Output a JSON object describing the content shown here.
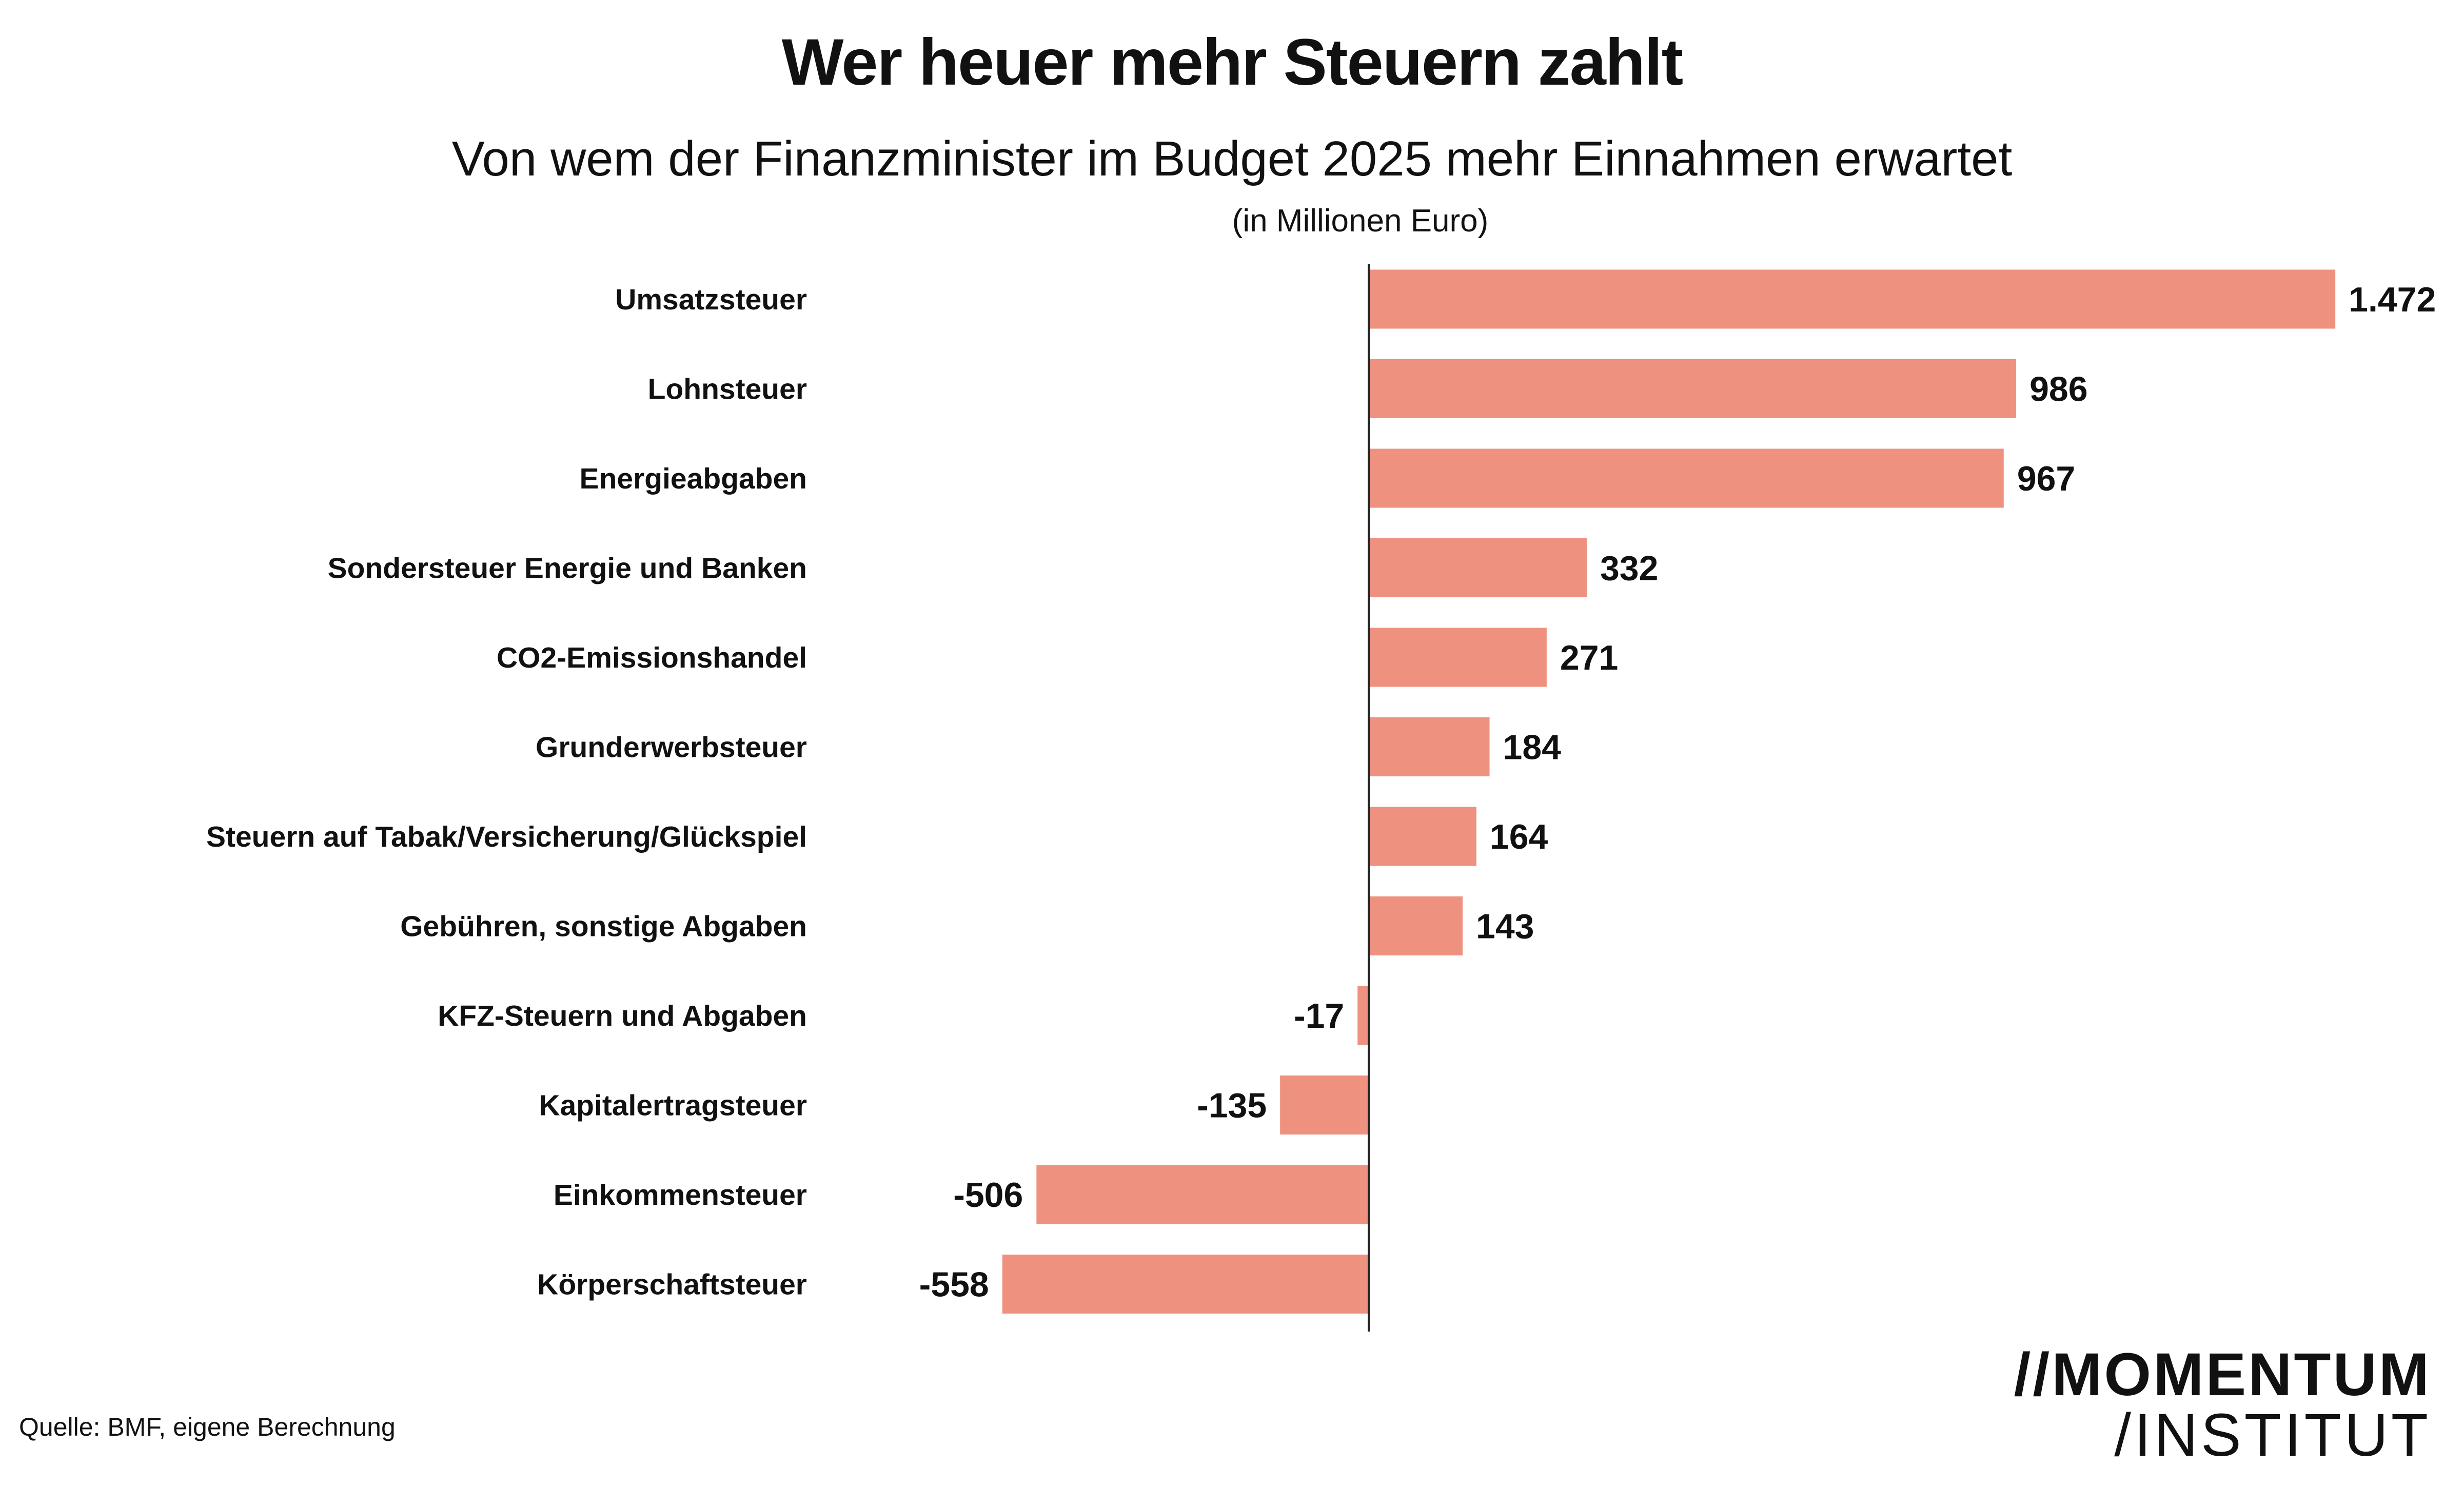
{
  "header": {
    "title": "Wer heuer mehr Steuern zahlt",
    "subtitle": "Von wem der Finanzminister im Budget 2025 mehr Einnahmen erwartet",
    "unit": "(in Millionen Euro)"
  },
  "footer": {
    "source": "Quelle: BMF, eigene Berechnung",
    "logo_line1": "MOMENTUM",
    "logo_line1_prefix": "//",
    "logo_line2": "/INSTITUT"
  },
  "colors": {
    "bar": "#ee917f",
    "axis": "#222222",
    "text": "#111111"
  },
  "chart_data": {
    "type": "bar",
    "orientation": "horizontal",
    "title": "Wer heuer mehr Steuern zahlt",
    "subtitle": "Von wem der Finanzminister im Budget 2025 mehr Einnahmen erwartet",
    "unit": "(in Millionen Euro)",
    "categories": [
      "Umsatzsteuer",
      "Lohnsteuer",
      "Energieabgaben",
      "Sondersteuer Energie und Banken",
      "CO2-Emissionshandel",
      "Grunderwerbsteuer",
      "Steuern auf Tabak/Versicherung/Glückspiel",
      "Gebühren, sonstige Abgaben",
      "KFZ-Steuern und Abgaben",
      "Kapitalertragsteuer",
      "Einkommensteuer",
      "Körperschaftsteuer"
    ],
    "values": [
      1472,
      986,
      967,
      332,
      271,
      184,
      164,
      143,
      -17,
      -135,
      -506,
      -558
    ],
    "value_labels": [
      "1.472",
      "986",
      "967",
      "332",
      "271",
      "184",
      "164",
      "143",
      "-17",
      "-135",
      "-506",
      "-558"
    ],
    "xlim": [
      -558,
      1472
    ],
    "grid": false,
    "legend": "none"
  }
}
